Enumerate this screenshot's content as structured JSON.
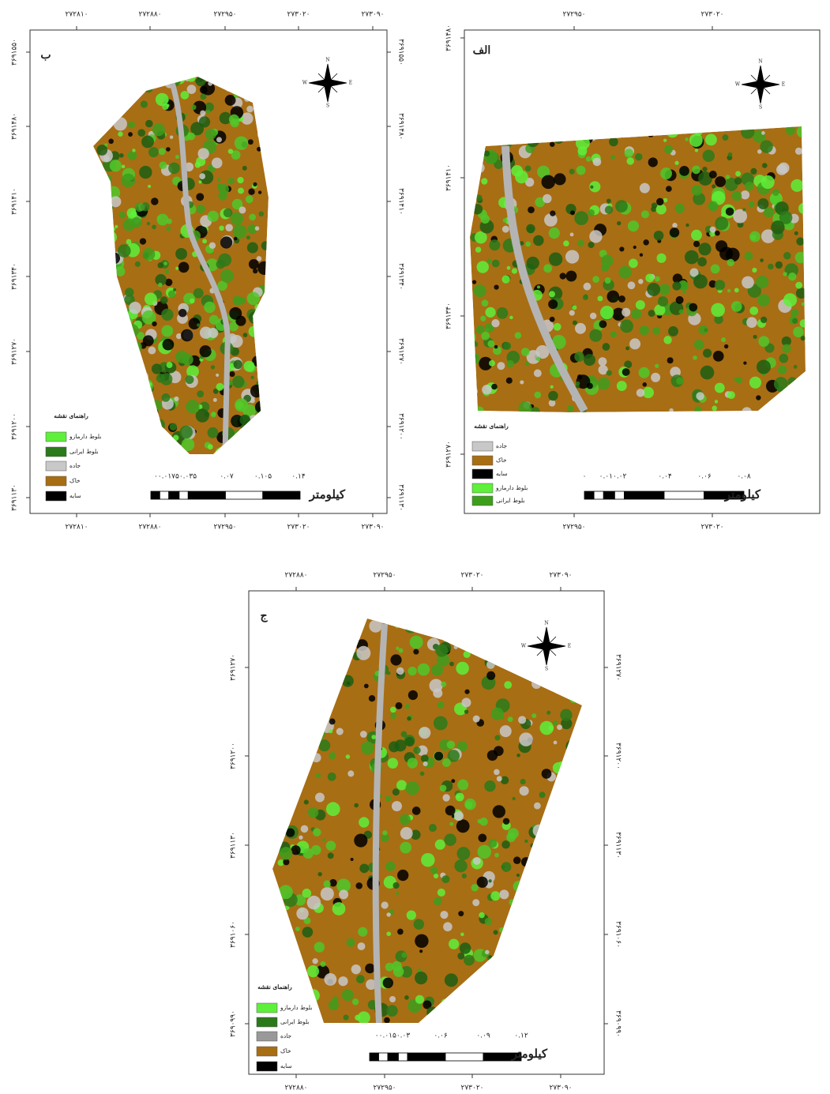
{
  "panels": [
    {
      "label": "ب",
      "x_ticks": [
        "۲۷۲۸۱۰",
        "۲۷۲۸۸۰",
        "۲۷۲۹۵۰",
        "۲۷۳۰۲۰",
        "۲۷۳۰۹۰"
      ],
      "y_ticks": [
        "۳۶۹۱۵۵۰",
        "۳۶۹۱۴۸۰",
        "۳۶۹۱۴۱۰",
        "۳۶۹۱۳۴۰",
        "۳۶۹۱۲۷۰",
        "۳۶۹۱۲۰۰",
        "۳۶۹۱۱۳۰"
      ],
      "legend_title": "راهنمای نقشه",
      "legend": [
        {
          "label": "بلوط دارمازو",
          "color": "#5ef03a"
        },
        {
          "label": "بلوط ایرانی",
          "color": "#2a7a1a"
        },
        {
          "label": "جاده",
          "color": "#c8c8c8"
        },
        {
          "label": "خاک",
          "color": "#a86e14"
        },
        {
          "label": "سایه",
          "color": "#000000"
        }
      ],
      "scale_labels": [
        "۰۰.۰۱۷۵۰.۰۳۵",
        "۰.۰۷",
        "۰.۱۰۵",
        "۰.۱۴"
      ],
      "scale_unit": "کیلومتر",
      "compass": [
        "N",
        "E",
        "S",
        "W"
      ]
    },
    {
      "label": "الف",
      "x_ticks": [
        "۲۷۲۹۵۰",
        "۲۷۳۰۲۰"
      ],
      "y_ticks": [
        "۳۶۹۱۴۸۰",
        "۳۶۹۱۴۱۰",
        "۳۶۹۱۳۴۰",
        "۳۶۹۱۲۷۰"
      ],
      "legend_title": "راهنمای نقشه",
      "legend": [
        {
          "label": "جاده",
          "color": "#c8c8c8"
        },
        {
          "label": "خاک",
          "color": "#a86e14"
        },
        {
          "label": "سایه",
          "color": "#000000"
        },
        {
          "label": "بلوط دارمازو",
          "color": "#5ef03a"
        },
        {
          "label": "بلوط ایرانی",
          "color": "#3d9e1c"
        }
      ],
      "scale_labels": [
        "۰",
        "۰.۰۱۰.۰۲",
        "۰.۰۴",
        "۰.۰۶",
        "۰.۰۸"
      ],
      "scale_unit": "کیلومتر",
      "compass": [
        "N",
        "E",
        "S",
        "W"
      ]
    },
    {
      "label": "ج",
      "x_ticks": [
        "۲۷۲۸۸۰",
        "۲۷۲۹۵۰",
        "۲۷۳۰۲۰",
        "۲۷۳۰۹۰"
      ],
      "y_ticks": [
        "۳۶۹۱۲۷۰",
        "۳۶۹۱۲۰۰",
        "۳۶۹۱۱۳۰",
        "۳۶۹۱۰۶۰",
        "۳۶۹۰۹۹۰"
      ],
      "legend_title": "راهنمای نقشه",
      "legend": [
        {
          "label": "بلوط دارمازو",
          "color": "#5ef03a"
        },
        {
          "label": "بلوط ایرانی",
          "color": "#2a7a1a"
        },
        {
          "label": "جاده",
          "color": "#999999"
        },
        {
          "label": "خاک",
          "color": "#a86e14"
        },
        {
          "label": "سایه",
          "color": "#000000"
        }
      ],
      "scale_labels": [
        "۰۰.۰۱۵۰.۰۳",
        "۰.۰۶",
        "۰.۰۹",
        "۰.۱۲"
      ],
      "scale_unit": "کیلومتر",
      "compass": [
        "N",
        "E",
        "S",
        "W"
      ]
    }
  ]
}
